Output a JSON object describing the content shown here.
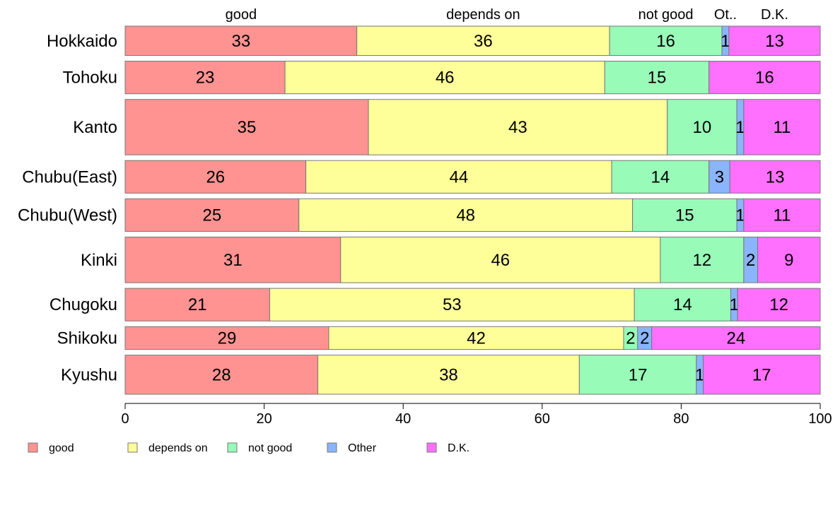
{
  "chart_data": {
    "type": "bar",
    "orientation": "horizontal",
    "stacked": true,
    "categories": [
      "Hokkaido",
      "Tohoku",
      "Kanto",
      "Chubu(East)",
      "Chubu(West)",
      "Kinki",
      "Chugoku",
      "Shikoku",
      "Kyushu"
    ],
    "series": [
      {
        "name": "good",
        "color": "#ff9391",
        "values": [
          33,
          23,
          35,
          26,
          25,
          31,
          21,
          29,
          28
        ]
      },
      {
        "name": "depends on",
        "color": "#ffff99",
        "values": [
          36,
          46,
          43,
          44,
          48,
          46,
          53,
          42,
          38
        ]
      },
      {
        "name": "not good",
        "color": "#98fbb8",
        "values": [
          16,
          15,
          10,
          14,
          15,
          12,
          14,
          2,
          17
        ]
      },
      {
        "name": "Other",
        "color": "#8ab4fc",
        "values": [
          1,
          0,
          1,
          3,
          1,
          2,
          1,
          2,
          1
        ]
      },
      {
        "name": "D.K.",
        "color": "#ff70ff",
        "values": [
          13,
          16,
          11,
          13,
          11,
          9,
          12,
          24,
          17
        ]
      }
    ],
    "category_weights": [
      0.9,
      1.0,
      1.7,
      1.0,
      1.0,
      1.4,
      1.0,
      0.7,
      1.2
    ],
    "top_labels": [
      "good",
      "depends on",
      "not good",
      "Ot..",
      "D.K."
    ],
    "xlim": [
      0,
      100
    ],
    "xticks": [
      0,
      20,
      40,
      60,
      80,
      100
    ],
    "grid": false,
    "legend_position": "bottom-left"
  }
}
